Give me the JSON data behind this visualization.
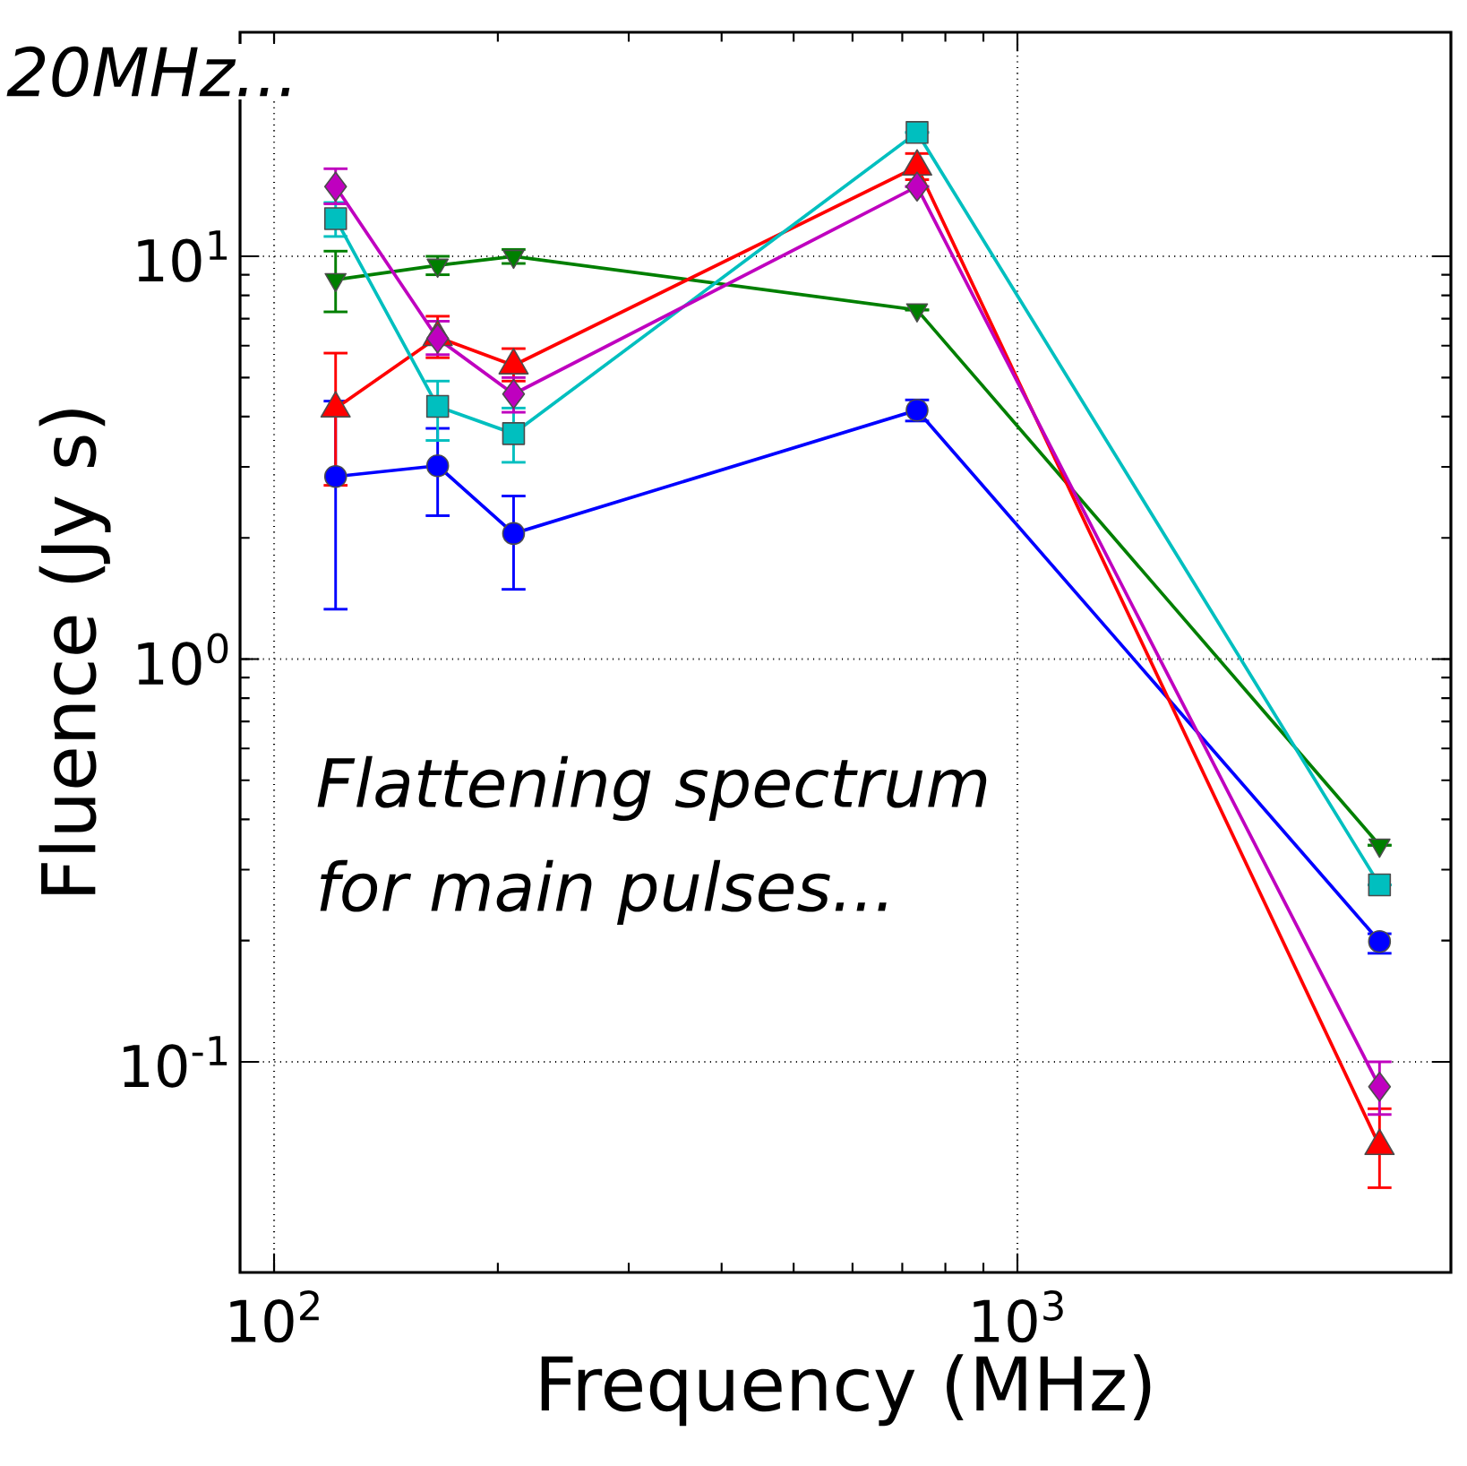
{
  "chart_data": {
    "type": "line",
    "xlabel": "Frequency (MHz)",
    "ylabel": "Fluence (Jy s)",
    "log": "xy",
    "grid": true,
    "x": [
      121,
      166,
      210,
      733,
      3070
    ],
    "xlim": [
      90,
      3830
    ],
    "ylim": [
      0.03,
      36
    ],
    "xticks": [
      {
        "value": 100,
        "label": "10$^{2}$"
      },
      {
        "value": 1000,
        "label": "10$^{3}$"
      }
    ],
    "yticks": [
      {
        "value": 0.1,
        "label": "10$^{-1}$"
      },
      {
        "value": 1,
        "label": "10$^{0}$"
      },
      {
        "value": 10,
        "label": "10$^{1}$"
      }
    ],
    "annotations": [
      "20MHz...",
      "Flattening spectrum",
      "for main pulses..."
    ],
    "series": [
      {
        "color": "#0000ff",
        "marker": "circle",
        "values": [
          2.84,
          3.02,
          2.05,
          4.15,
          0.199
        ],
        "errors": [
          [
            1.33,
            4.37
          ],
          [
            2.27,
            3.74
          ],
          [
            1.49,
            2.54
          ],
          [
            3.9,
            4.4
          ],
          [
            0.186,
            0.208
          ]
        ]
      },
      {
        "color": "#007f00",
        "marker": "triangle_down",
        "values": [
          8.75,
          9.5,
          10.0,
          7.36,
          0.345
        ],
        "errors": [
          [
            7.28,
            10.3
          ],
          [
            9.0,
            10.0
          ],
          [
            9.6,
            10.4
          ],
          null,
          null
        ]
      },
      {
        "color": "#ff0000",
        "marker": "triangle",
        "values": [
          4.19,
          6.3,
          5.36,
          16.7,
          0.0618
        ],
        "errors": [
          [
            2.7,
            5.75
          ],
          [
            5.6,
            7.1
          ],
          [
            4.9,
            5.9
          ],
          [
            15.5,
            18.0
          ],
          [
            0.0487,
            0.0765
          ]
        ]
      },
      {
        "color": "#00bfbf",
        "marker": "square",
        "values": [
          12.4,
          4.24,
          3.63,
          20.3,
          0.275
        ],
        "errors": [
          [
            11.2,
            13.6
          ],
          [
            3.49,
            4.9
          ],
          [
            3.08,
            4.2
          ],
          null,
          null
        ]
      },
      {
        "color": "#bf00bf",
        "marker": "diamond",
        "values": [
          14.9,
          6.25,
          4.55,
          14.9,
          0.0867
        ],
        "errors": [
          [
            13.5,
            16.5
          ],
          [
            5.7,
            6.9
          ],
          [
            4.1,
            5.0
          ],
          null,
          [
            0.074,
            0.1
          ]
        ]
      }
    ]
  }
}
